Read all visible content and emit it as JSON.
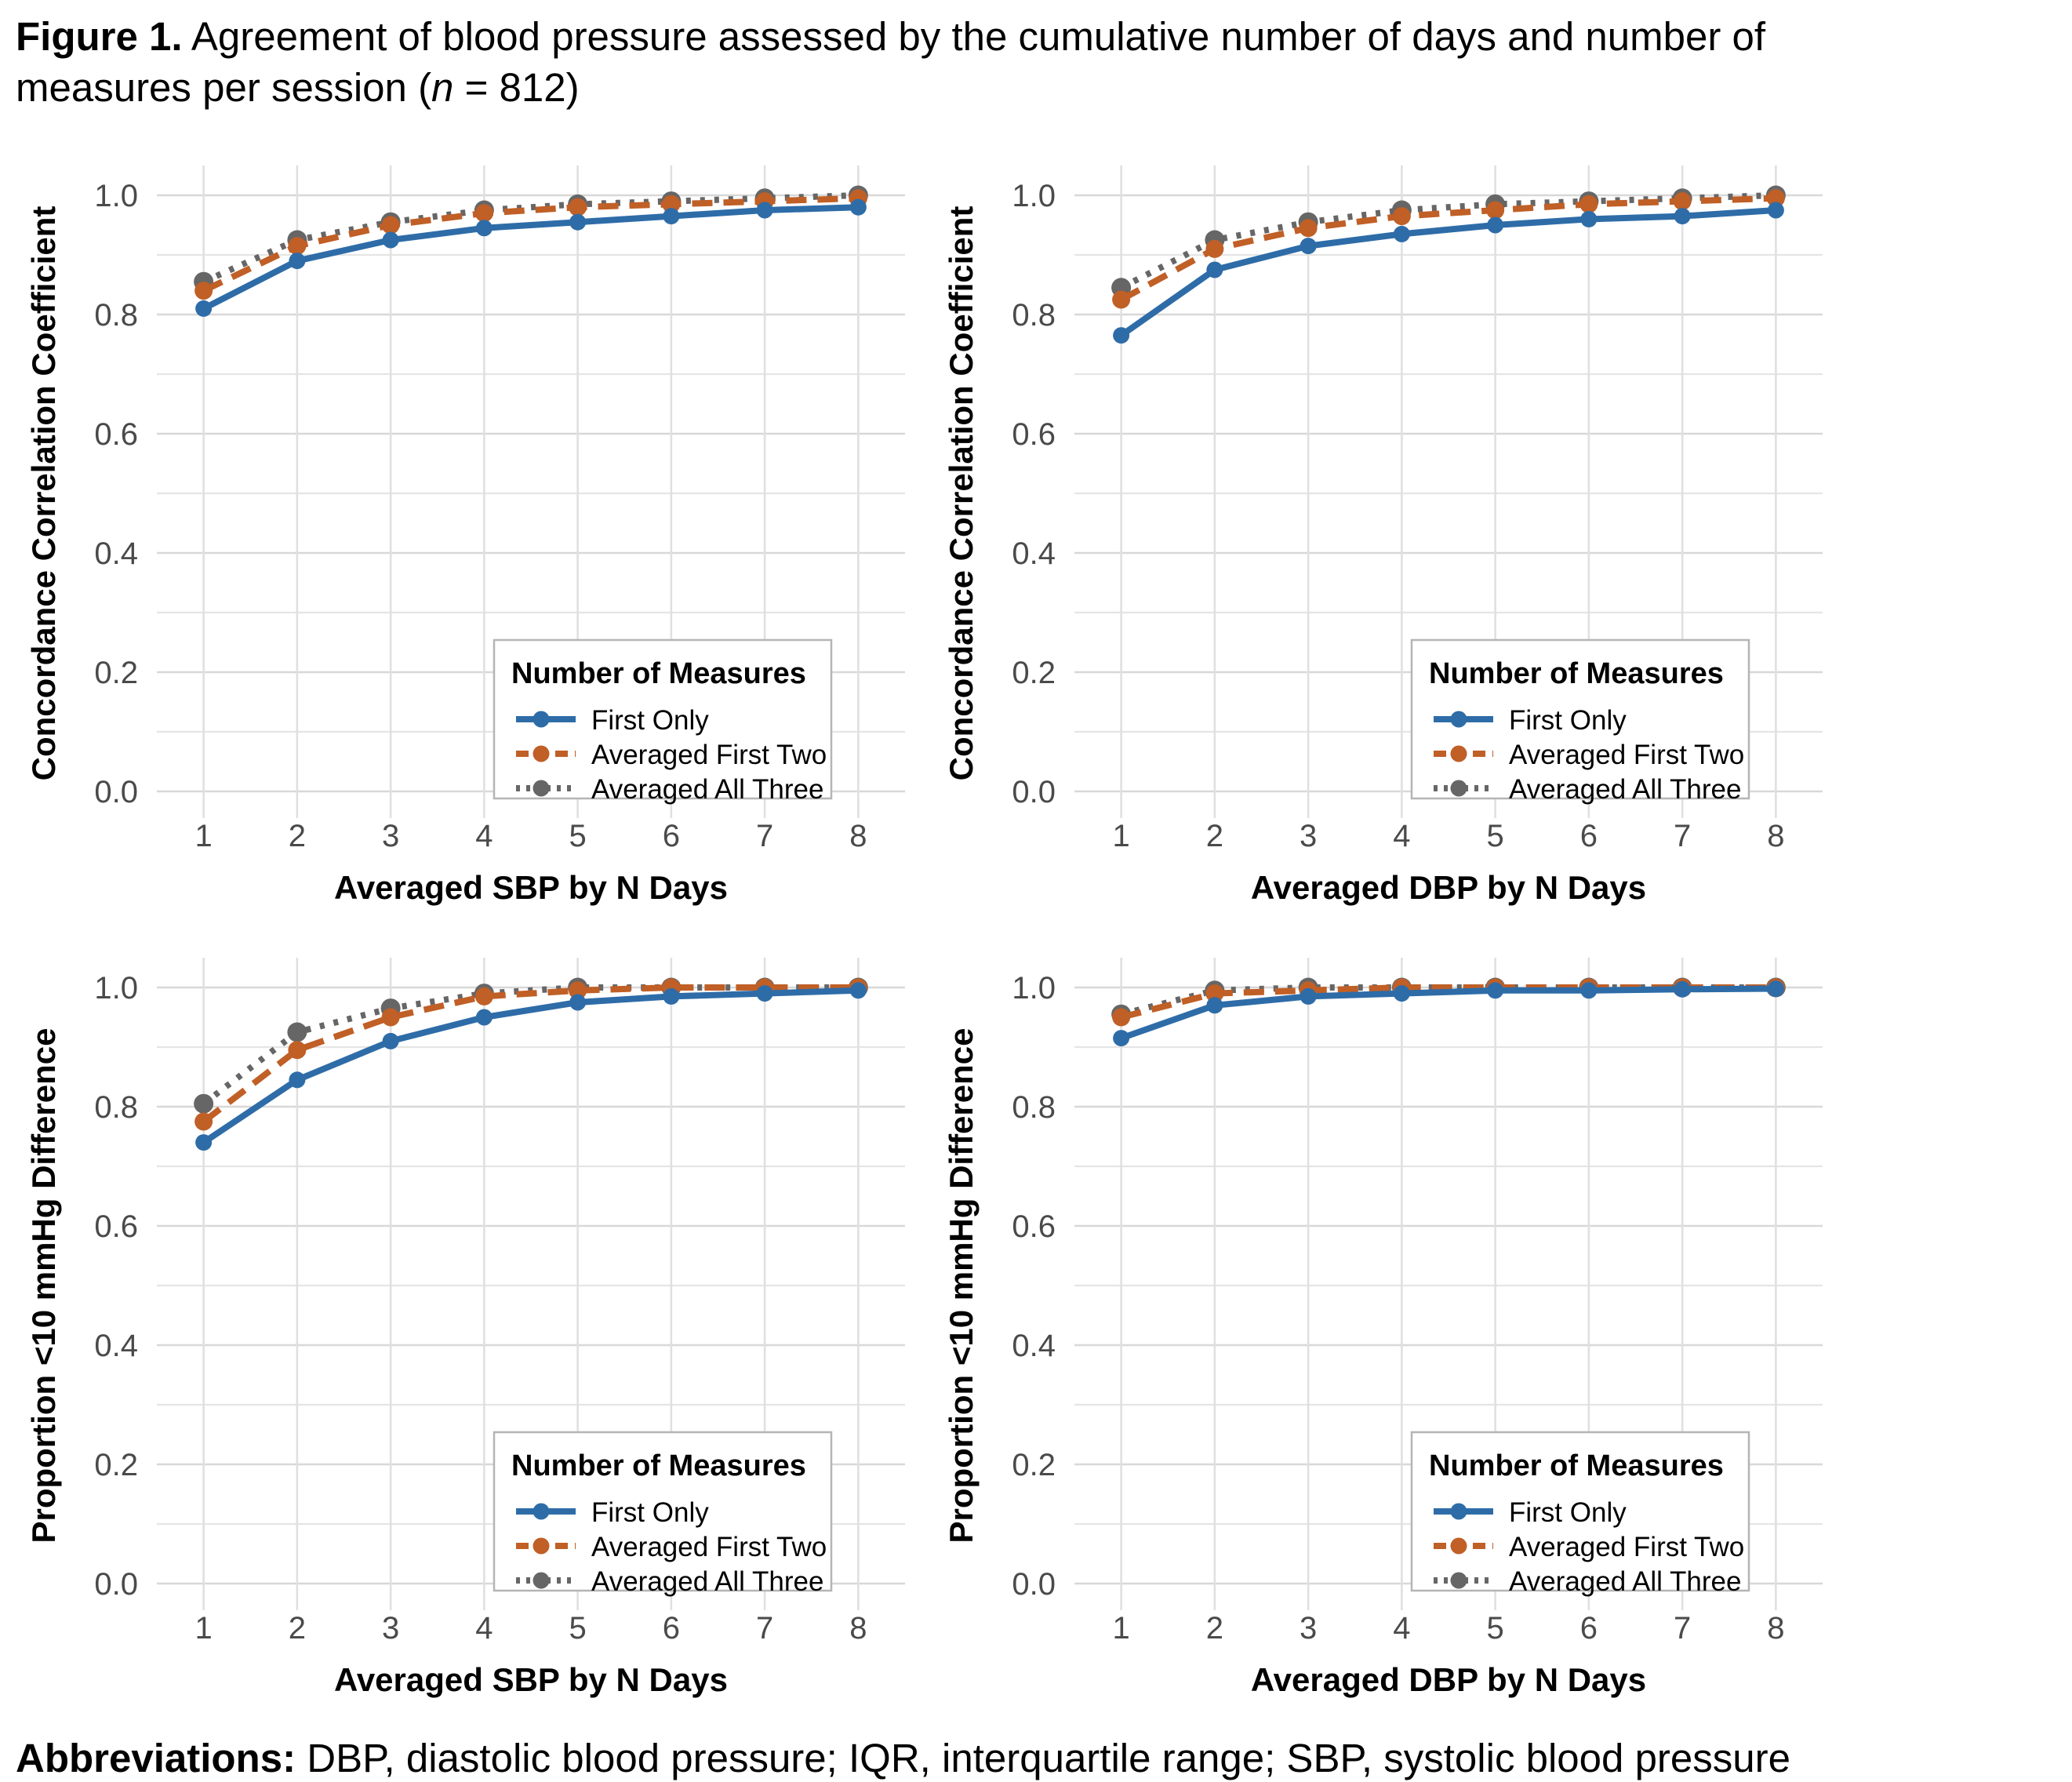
{
  "caption": {
    "label": "Figure 1.",
    "line1_rest": " Agreement of blood pressure assessed by the cumulative number of days and number of",
    "line2_pre": "measures per session (",
    "n_italic": "n",
    "line2_post": " = 812)"
  },
  "footnote": {
    "label": "Abbreviations:",
    "text": " DBP, diastolic blood pressure; IQR, interquartile range; SBP, systolic blood pressure"
  },
  "palette": {
    "first_only": "#2E6CA8",
    "averaged_first_two": "#C05F26",
    "averaged_all_three": "#666666",
    "tick_label": "#4A4A4A",
    "axis_title": "#000000",
    "grid_major": "#D8D8D8",
    "grid_minor": "#E5E5E5",
    "grid_vertical": "#E0E0E0",
    "legend_border": "#B5B5B5",
    "legend_background": "#FFFFFF"
  },
  "chart_data": [
    {
      "type": "line",
      "position": "top-left",
      "title": "",
      "xlabel": "Averaged SBP by N Days",
      "ylabel": "Concordance Correlation Coefficient",
      "x": [
        1,
        2,
        3,
        4,
        5,
        6,
        7,
        8
      ],
      "ylim": [
        0,
        1.05
      ],
      "yticks": [
        0.0,
        0.2,
        0.4,
        0.6,
        0.8,
        1.0
      ],
      "grid": "on",
      "legend_title": "Number of Measures",
      "legend_position": "inside-bottom-right",
      "series": [
        {
          "name": "First Only",
          "color": "#2E6CA8",
          "style": "solid",
          "values": [
            0.81,
            0.89,
            0.925,
            0.945,
            0.955,
            0.965,
            0.975,
            0.98
          ]
        },
        {
          "name": "Averaged First Two",
          "color": "#C05F26",
          "style": "dashed",
          "values": [
            0.84,
            0.915,
            0.95,
            0.97,
            0.98,
            0.985,
            0.99,
            0.995
          ]
        },
        {
          "name": "Averaged All Three",
          "color": "#666666",
          "style": "dotted",
          "values": [
            0.855,
            0.925,
            0.955,
            0.975,
            0.985,
            0.99,
            0.995,
            1.0
          ]
        }
      ]
    },
    {
      "type": "line",
      "position": "top-right",
      "title": "",
      "xlabel": "Averaged DBP by N Days",
      "ylabel": "Concordance Correlation Coefficient",
      "x": [
        1,
        2,
        3,
        4,
        5,
        6,
        7,
        8
      ],
      "ylim": [
        0,
        1.05
      ],
      "yticks": [
        0.0,
        0.2,
        0.4,
        0.6,
        0.8,
        1.0
      ],
      "grid": "on",
      "legend_title": "Number of Measures",
      "legend_position": "inside-bottom-right",
      "series": [
        {
          "name": "First Only",
          "color": "#2E6CA8",
          "style": "solid",
          "values": [
            0.765,
            0.875,
            0.915,
            0.935,
            0.95,
            0.96,
            0.965,
            0.975
          ]
        },
        {
          "name": "Averaged First Two",
          "color": "#C05F26",
          "style": "dashed",
          "values": [
            0.825,
            0.91,
            0.945,
            0.965,
            0.975,
            0.985,
            0.99,
            0.995
          ]
        },
        {
          "name": "Averaged All Three",
          "color": "#666666",
          "style": "dotted",
          "values": [
            0.845,
            0.925,
            0.955,
            0.975,
            0.985,
            0.99,
            0.995,
            1.0
          ]
        }
      ]
    },
    {
      "type": "line",
      "position": "bottom-left",
      "title": "",
      "xlabel": "Averaged SBP by N Days",
      "ylabel": "Proportion <10 mmHg Difference",
      "x": [
        1,
        2,
        3,
        4,
        5,
        6,
        7,
        8
      ],
      "ylim": [
        0,
        1.05
      ],
      "yticks": [
        0.0,
        0.2,
        0.4,
        0.6,
        0.8,
        1.0
      ],
      "grid": "on",
      "legend_title": "Number of Measures",
      "legend_position": "inside-bottom-right",
      "series": [
        {
          "name": "First Only",
          "color": "#2E6CA8",
          "style": "solid",
          "values": [
            0.74,
            0.845,
            0.91,
            0.95,
            0.975,
            0.985,
            0.99,
            0.995
          ]
        },
        {
          "name": "Averaged First Two",
          "color": "#C05F26",
          "style": "dashed",
          "values": [
            0.775,
            0.895,
            0.95,
            0.985,
            0.995,
            1.0,
            1.0,
            1.0
          ]
        },
        {
          "name": "Averaged All Three",
          "color": "#666666",
          "style": "dotted",
          "values": [
            0.805,
            0.925,
            0.965,
            0.99,
            1.0,
            1.0,
            1.0,
            1.0
          ]
        }
      ]
    },
    {
      "type": "line",
      "position": "bottom-right",
      "title": "",
      "xlabel": "Averaged DBP by N Days",
      "ylabel": "Proportion <10 mmHg Difference",
      "x": [
        1,
        2,
        3,
        4,
        5,
        6,
        7,
        8
      ],
      "ylim": [
        0,
        1.05
      ],
      "yticks": [
        0.0,
        0.2,
        0.4,
        0.6,
        0.8,
        1.0
      ],
      "grid": "on",
      "legend_title": "Number of Measures",
      "legend_position": "inside-bottom-right",
      "series": [
        {
          "name": "First Only",
          "color": "#2E6CA8",
          "style": "solid",
          "values": [
            0.915,
            0.97,
            0.985,
            0.99,
            0.995,
            0.995,
            0.997,
            0.998
          ]
        },
        {
          "name": "Averaged First Two",
          "color": "#C05F26",
          "style": "dashed",
          "values": [
            0.95,
            0.99,
            0.995,
            1.0,
            1.0,
            1.0,
            1.0,
            1.0
          ]
        },
        {
          "name": "Averaged All Three",
          "color": "#666666",
          "style": "dotted",
          "values": [
            0.955,
            0.995,
            1.0,
            1.0,
            1.0,
            1.0,
            1.0,
            1.0
          ]
        }
      ]
    }
  ]
}
